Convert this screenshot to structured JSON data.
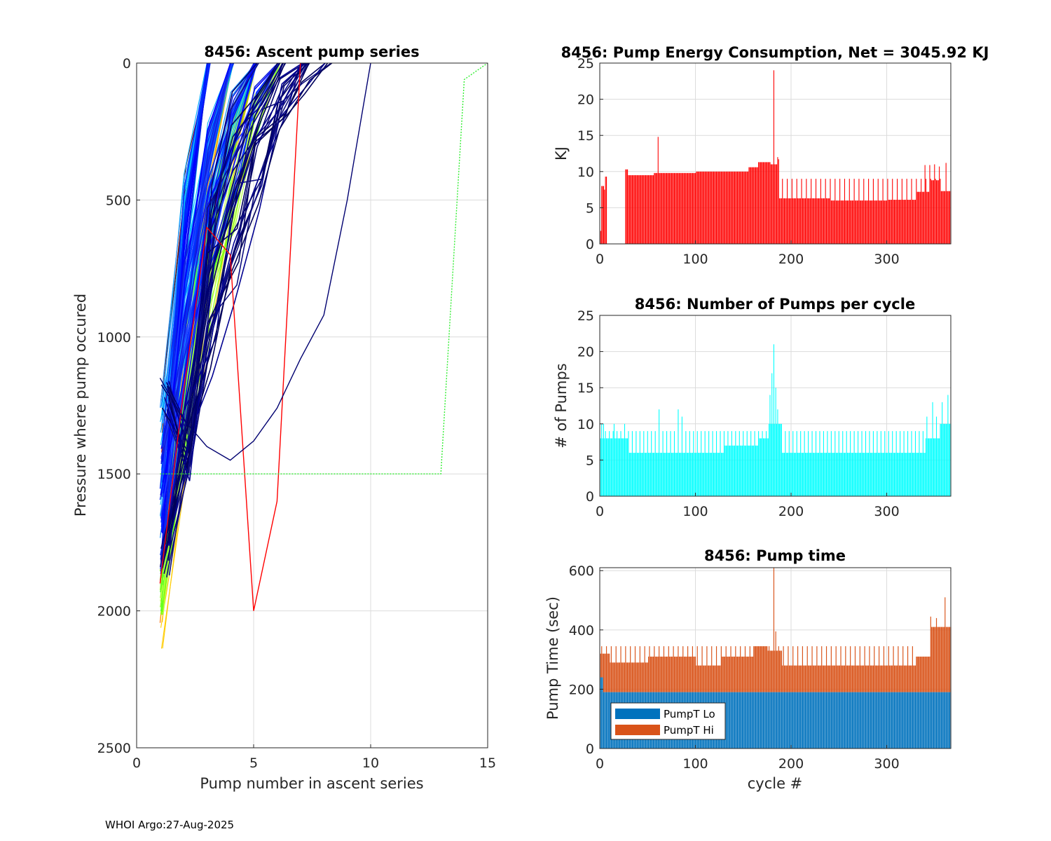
{
  "footer": "WHOI Argo:27-Aug-2025",
  "colors": {
    "energy_bar": "#ff0000",
    "pumps_bar": "#00ffff",
    "pumpt_lo": "#0072bd",
    "pumpt_hi": "#d95319",
    "grid": "#dcdcdc",
    "axis": "#262626"
  },
  "chart_data": [
    {
      "id": "ascent",
      "type": "line",
      "title": "8456: Ascent pump series",
      "xlabel": "Pump number in ascent series",
      "ylabel": "Pressure where pump occured",
      "xlim": [
        0,
        15
      ],
      "ylim": [
        0,
        2500
      ],
      "y_reversed": true,
      "xticks": [
        0,
        5,
        10,
        15
      ],
      "yticks": [
        0,
        500,
        1000,
        1500,
        2000,
        2500
      ],
      "grid": true,
      "color_families": [
        {
          "name": "darkred",
          "colors": [
            "#7a0000",
            "#4d0000",
            "#990000"
          ],
          "count": 6
        },
        {
          "name": "red",
          "colors": [
            "#ff0000",
            "#ff3300",
            "#ff6600"
          ],
          "count": 10
        },
        {
          "name": "yellow",
          "colors": [
            "#ffcc00",
            "#ffaa00",
            "#ffee00"
          ],
          "count": 8
        },
        {
          "name": "green",
          "colors": [
            "#7cff00",
            "#a6ff33",
            "#55ff2a",
            "#c8ff50"
          ],
          "count": 60
        },
        {
          "name": "lightblue",
          "colors": [
            "#0088ff",
            "#00aaff",
            "#3399ff",
            "#00c0ff"
          ],
          "count": 50
        },
        {
          "name": "blue",
          "colors": [
            "#0000ff",
            "#1020dd",
            "#0030ff",
            "#2040ff"
          ],
          "count": 45
        },
        {
          "name": "navy",
          "colors": [
            "#000070",
            "#00005a",
            "#101080",
            "#000090"
          ],
          "count": 30
        }
      ],
      "special_series": [
        {
          "name": "red-outlier",
          "color": "#ff0000",
          "x": [
            1,
            2,
            3,
            4,
            5,
            6,
            7
          ],
          "y": [
            1900,
            1200,
            600,
            700,
            2000,
            1600,
            0
          ]
        },
        {
          "name": "green-outlier",
          "color": "#33ee33",
          "x": [
            1,
            2,
            3,
            4,
            5,
            6,
            7,
            8,
            9,
            10,
            11,
            12,
            13,
            14,
            15
          ],
          "y": [
            1500,
            1500,
            1500,
            1500,
            1500,
            1500,
            1500,
            1500,
            1500,
            1500,
            1500,
            1500,
            1500,
            60,
            0
          ]
        },
        {
          "name": "navy-outlier",
          "color": "#000070",
          "x": [
            1,
            2,
            3,
            4,
            5,
            6,
            7,
            8,
            9,
            10
          ],
          "y": [
            1150,
            1300,
            1400,
            1450,
            1380,
            1260,
            1080,
            920,
            500,
            0
          ]
        }
      ]
    },
    {
      "id": "energy",
      "type": "bar",
      "title": "8456: Pump Energy Consumption,  Net = 3045.92 KJ",
      "xlabel": "",
      "ylabel": "KJ",
      "xlim": [
        0,
        367
      ],
      "ylim": [
        0,
        25
      ],
      "xticks": [
        0,
        100,
        200,
        300
      ],
      "yticks": [
        0,
        5,
        10,
        15,
        20,
        25
      ],
      "grid": true,
      "segments": [
        {
          "from": 1,
          "to": 1,
          "base": 1.8
        },
        {
          "from": 2,
          "to": 4,
          "base": 8.0
        },
        {
          "from": 5,
          "to": 5,
          "base": 7.5
        },
        {
          "from": 6,
          "to": 7,
          "base": 9.3
        },
        {
          "from": 27,
          "to": 29,
          "base": 10.3
        },
        {
          "from": 30,
          "to": 56,
          "base": 9.5
        },
        {
          "from": 57,
          "to": 100,
          "base": 9.8
        },
        {
          "from": 101,
          "to": 155,
          "base": 10.0
        },
        {
          "from": 156,
          "to": 165,
          "base": 10.6
        },
        {
          "from": 166,
          "to": 178,
          "base": 11.3
        },
        {
          "from": 179,
          "to": 185,
          "base": 11.0
        },
        {
          "from": 186,
          "to": 240,
          "base": 6.3
        },
        {
          "from": 241,
          "to": 300,
          "base": 6.0
        },
        {
          "from": 301,
          "to": 330,
          "base": 6.1
        },
        {
          "from": 331,
          "to": 345,
          "base": 7.2
        },
        {
          "from": 346,
          "to": 355,
          "base": 8.8
        },
        {
          "from": 356,
          "to": 367,
          "base": 7.3
        }
      ],
      "periodic_spikes": [
        {
          "from": 186,
          "to": 360,
          "every": 5,
          "value": 9.0
        }
      ],
      "spikes": [
        {
          "cycle": 61,
          "value": 14.8
        },
        {
          "cycle": 182,
          "value": 24.0
        },
        {
          "cycle": 186,
          "value": 12.0
        },
        {
          "cycle": 187,
          "value": 11.7
        },
        {
          "cycle": 340,
          "value": 10.9
        },
        {
          "cycle": 345,
          "value": 10.9
        },
        {
          "cycle": 350,
          "value": 11.0
        },
        {
          "cycle": 355,
          "value": 10.7
        },
        {
          "cycle": 362,
          "value": 11.2
        }
      ]
    },
    {
      "id": "pumps",
      "type": "bar",
      "title": "8456: Number of Pumps per cycle",
      "xlabel": "",
      "ylabel": "# of Pumps",
      "xlim": [
        0,
        367
      ],
      "ylim": [
        0,
        25
      ],
      "xticks": [
        0,
        100,
        200,
        300
      ],
      "yticks": [
        0,
        5,
        10,
        15,
        20,
        25
      ],
      "grid": true,
      "segments": [
        {
          "from": 1,
          "to": 30,
          "base": 8
        },
        {
          "from": 31,
          "to": 60,
          "base": 6
        },
        {
          "from": 61,
          "to": 100,
          "base": 6
        },
        {
          "from": 101,
          "to": 130,
          "base": 6
        },
        {
          "from": 131,
          "to": 165,
          "base": 7
        },
        {
          "from": 166,
          "to": 176,
          "base": 8
        },
        {
          "from": 177,
          "to": 190,
          "base": 10
        },
        {
          "from": 191,
          "to": 340,
          "base": 6
        },
        {
          "from": 341,
          "to": 355,
          "base": 8
        },
        {
          "from": 356,
          "to": 367,
          "base": 10
        }
      ],
      "periodic_spikes": [
        {
          "from": 2,
          "to": 340,
          "every": 4,
          "value": 9
        }
      ],
      "spikes": [
        {
          "cycle": 2,
          "value": 10
        },
        {
          "cycle": 4,
          "value": 10
        },
        {
          "cycle": 15,
          "value": 10
        },
        {
          "cycle": 26,
          "value": 10
        },
        {
          "cycle": 62,
          "value": 12
        },
        {
          "cycle": 82,
          "value": 12
        },
        {
          "cycle": 86,
          "value": 11
        },
        {
          "cycle": 178,
          "value": 14
        },
        {
          "cycle": 180,
          "value": 17
        },
        {
          "cycle": 182,
          "value": 21
        },
        {
          "cycle": 184,
          "value": 15
        },
        {
          "cycle": 186,
          "value": 12
        },
        {
          "cycle": 342,
          "value": 11
        },
        {
          "cycle": 348,
          "value": 13
        },
        {
          "cycle": 352,
          "value": 11
        },
        {
          "cycle": 358,
          "value": 13
        },
        {
          "cycle": 364,
          "value": 14
        }
      ]
    },
    {
      "id": "pumptime",
      "type": "bar",
      "stacked": true,
      "title": "8456: Pump time",
      "xlabel": "cycle #",
      "ylabel": "Pump Time (sec)",
      "xlim": [
        0,
        367
      ],
      "ylim": [
        0,
        610
      ],
      "xticks": [
        0,
        100,
        200,
        300
      ],
      "yticks": [
        0,
        200,
        400,
        600
      ],
      "grid": true,
      "legend": {
        "position": "bottom-left",
        "entries": [
          "PumpT Lo",
          "PumpT Hi"
        ]
      },
      "lo_segments": [
        {
          "from": 1,
          "to": 3,
          "value": 240
        },
        {
          "from": 4,
          "to": 367,
          "value": 190
        }
      ],
      "total_segments": [
        {
          "from": 1,
          "to": 10,
          "base": 320
        },
        {
          "from": 11,
          "to": 50,
          "base": 290
        },
        {
          "from": 51,
          "to": 100,
          "base": 310
        },
        {
          "from": 101,
          "to": 126,
          "base": 280
        },
        {
          "from": 127,
          "to": 160,
          "base": 310
        },
        {
          "from": 161,
          "to": 175,
          "base": 345
        },
        {
          "from": 176,
          "to": 190,
          "base": 330
        },
        {
          "from": 191,
          "to": 330,
          "base": 280
        },
        {
          "from": 331,
          "to": 345,
          "base": 310
        },
        {
          "from": 346,
          "to": 367,
          "base": 410
        }
      ],
      "periodic_spikes": [
        {
          "from": 2,
          "to": 330,
          "every": 5,
          "value": 345
        }
      ],
      "spikes": [
        {
          "cycle": 182,
          "value": 610
        },
        {
          "cycle": 184,
          "value": 395
        },
        {
          "cycle": 346,
          "value": 445
        },
        {
          "cycle": 352,
          "value": 440
        },
        {
          "cycle": 361,
          "value": 510
        }
      ]
    }
  ]
}
